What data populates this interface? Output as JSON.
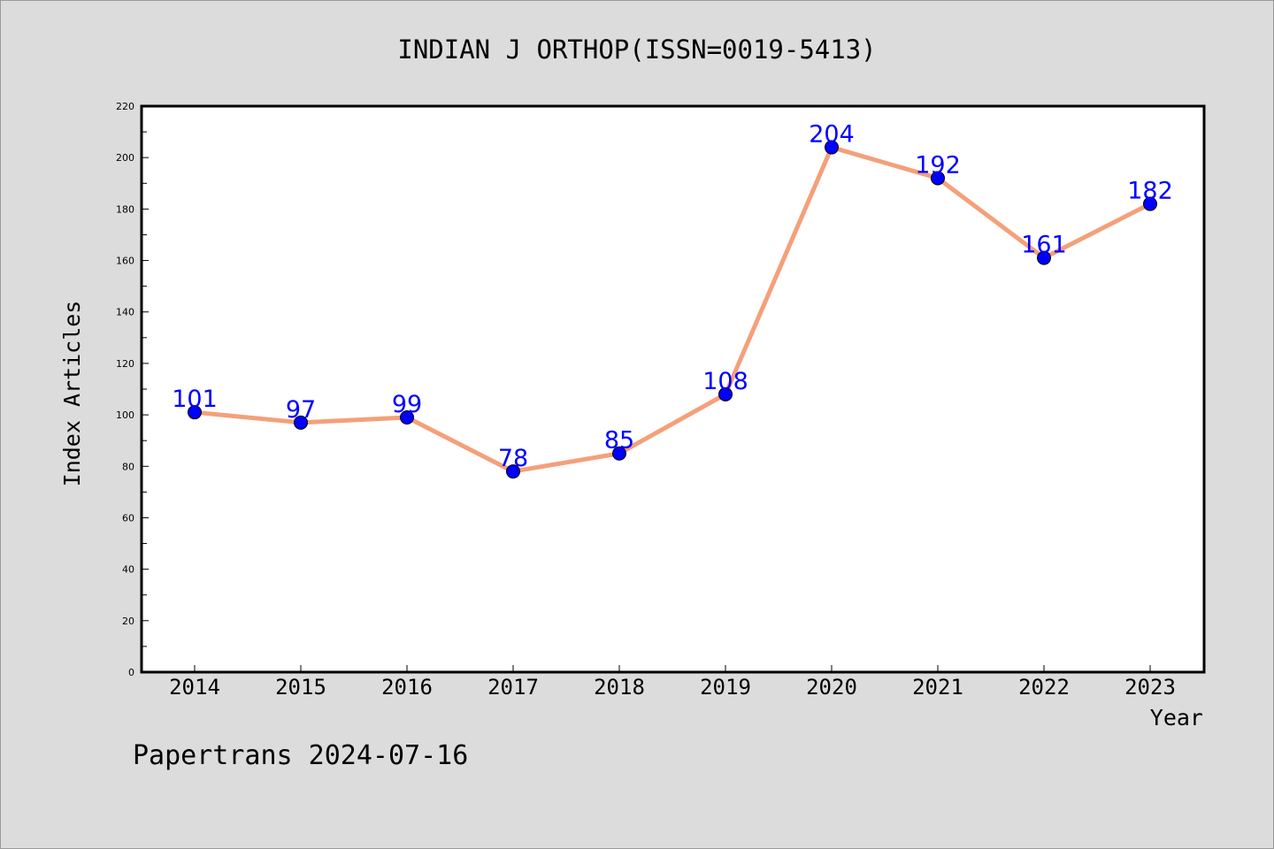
{
  "chart_data": {
    "type": "line",
    "title": "INDIAN J ORTHOP(ISSN=0019-5413)",
    "xlabel": "Year",
    "ylabel": "Index Articles",
    "x": [
      "2014",
      "2015",
      "2016",
      "2017",
      "2018",
      "2019",
      "2020",
      "2021",
      "2022",
      "2023"
    ],
    "values": [
      101,
      97,
      99,
      78,
      85,
      108,
      204,
      192,
      161,
      182
    ],
    "ylim": [
      0,
      220
    ],
    "yticks": [
      0,
      20,
      40,
      60,
      80,
      100,
      120,
      140,
      160,
      180,
      200,
      220
    ],
    "grid": false,
    "line_color": "#f4a07a",
    "marker_color": "#0000ff",
    "label_color": "#0000ff"
  },
  "footer": {
    "source": "Papertrans 2024-07-16"
  }
}
